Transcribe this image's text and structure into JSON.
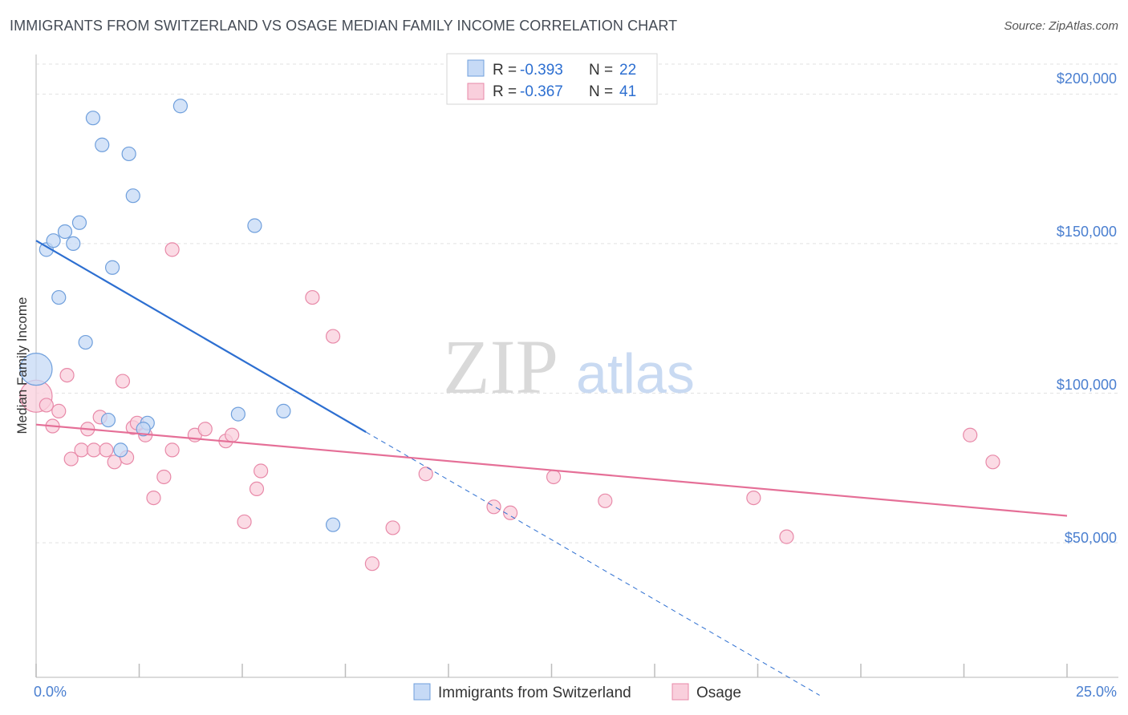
{
  "header": {
    "title": "IMMIGRANTS FROM SWITZERLAND VS OSAGE MEDIAN FAMILY INCOME CORRELATION CHART",
    "source": "Source: ZipAtlas.com"
  },
  "watermark": {
    "zip": "ZIP",
    "atlas": "atlas"
  },
  "colors": {
    "blue_fill": "#c6daf6",
    "blue_stroke": "#6f9fdc",
    "blue_line": "#2d6fd1",
    "pink_fill": "#f9cfdc",
    "pink_stroke": "#e889a8",
    "pink_line": "#e56f97",
    "tick_text": "#4a7fd0",
    "grid": "#e2e2e2"
  },
  "stats_legend": [
    {
      "r_label": "R = ",
      "r_value": "-0.393",
      "n_label": "N = ",
      "n_value": "22",
      "color": "blue"
    },
    {
      "r_label": "R = ",
      "r_value": "-0.367",
      "n_label": "N = ",
      "n_value": "41",
      "color": "pink"
    }
  ],
  "chart_data": {
    "type": "scatter",
    "title": "IMMIGRANTS FROM SWITZERLAND VS OSAGE MEDIAN FAMILY INCOME CORRELATION CHART",
    "xlabel": "",
    "ylabel": "Median Family Income",
    "xlim": [
      0,
      25
    ],
    "ylim": [
      5000,
      210000
    ],
    "x_tick_labels": [
      "0.0%",
      "25.0%"
    ],
    "y_ticks": [
      50000,
      100000,
      150000,
      200000
    ],
    "y_tick_labels": [
      "$50,000",
      "$100,000",
      "$150,000",
      "$200,000"
    ],
    "grid": true,
    "legend_position": "bottom-center",
    "series": [
      {
        "name": "Immigrants from Switzerland",
        "color": "blue",
        "points": [
          {
            "x": 0.0,
            "y": 108000,
            "big": true
          },
          {
            "x": 0.25,
            "y": 148000
          },
          {
            "x": 0.42,
            "y": 151000
          },
          {
            "x": 0.7,
            "y": 154000
          },
          {
            "x": 1.05,
            "y": 157000
          },
          {
            "x": 0.9,
            "y": 150000
          },
          {
            "x": 0.55,
            "y": 132000
          },
          {
            "x": 1.2,
            "y": 117000
          },
          {
            "x": 1.38,
            "y": 192000
          },
          {
            "x": 1.6,
            "y": 183000
          },
          {
            "x": 1.85,
            "y": 142000
          },
          {
            "x": 2.25,
            "y": 180000
          },
          {
            "x": 2.35,
            "y": 166000
          },
          {
            "x": 3.5,
            "y": 196000
          },
          {
            "x": 5.3,
            "y": 156000
          },
          {
            "x": 1.75,
            "y": 91000
          },
          {
            "x": 2.7,
            "y": 90000
          },
          {
            "x": 2.6,
            "y": 88000
          },
          {
            "x": 2.05,
            "y": 81000
          },
          {
            "x": 4.9,
            "y": 93000
          },
          {
            "x": 6.0,
            "y": 94000
          },
          {
            "x": 7.2,
            "y": 56000
          }
        ],
        "trend": {
          "x0": 0.0,
          "y0": 151000,
          "x1": 8.0,
          "y1": 87000,
          "dash_to_x": 19.0
        }
      },
      {
        "name": "Osage",
        "color": "pink",
        "points": [
          {
            "x": 0.0,
            "y": 99000,
            "big": true
          },
          {
            "x": 0.25,
            "y": 96000
          },
          {
            "x": 0.4,
            "y": 89000
          },
          {
            "x": 0.55,
            "y": 94000
          },
          {
            "x": 0.75,
            "y": 106000
          },
          {
            "x": 0.85,
            "y": 78000
          },
          {
            "x": 1.1,
            "y": 81000
          },
          {
            "x": 1.25,
            "y": 88000
          },
          {
            "x": 1.4,
            "y": 81000
          },
          {
            "x": 1.55,
            "y": 92000
          },
          {
            "x": 1.7,
            "y": 81000
          },
          {
            "x": 1.9,
            "y": 77000
          },
          {
            "x": 2.1,
            "y": 104000
          },
          {
            "x": 2.2,
            "y": 78500
          },
          {
            "x": 2.35,
            "y": 88500
          },
          {
            "x": 2.45,
            "y": 90000
          },
          {
            "x": 2.65,
            "y": 86000
          },
          {
            "x": 2.85,
            "y": 65000
          },
          {
            "x": 3.1,
            "y": 72000
          },
          {
            "x": 3.3,
            "y": 81000
          },
          {
            "x": 3.85,
            "y": 86000
          },
          {
            "x": 4.1,
            "y": 88000
          },
          {
            "x": 3.3,
            "y": 148000
          },
          {
            "x": 4.6,
            "y": 84000
          },
          {
            "x": 4.75,
            "y": 86000
          },
          {
            "x": 5.05,
            "y": 57000
          },
          {
            "x": 5.35,
            "y": 68000
          },
          {
            "x": 5.45,
            "y": 74000
          },
          {
            "x": 6.7,
            "y": 132000
          },
          {
            "x": 7.2,
            "y": 119000
          },
          {
            "x": 8.15,
            "y": 43000
          },
          {
            "x": 8.65,
            "y": 55000
          },
          {
            "x": 9.45,
            "y": 73000
          },
          {
            "x": 11.1,
            "y": 62000
          },
          {
            "x": 11.5,
            "y": 60000
          },
          {
            "x": 12.55,
            "y": 72000
          },
          {
            "x": 13.8,
            "y": 64000
          },
          {
            "x": 17.4,
            "y": 65000
          },
          {
            "x": 18.2,
            "y": 52000
          },
          {
            "x": 22.65,
            "y": 86000
          },
          {
            "x": 23.2,
            "y": 77000
          }
        ],
        "trend": {
          "x0": 0.0,
          "y0": 89500,
          "x1": 25.0,
          "y1": 59000
        }
      }
    ]
  }
}
